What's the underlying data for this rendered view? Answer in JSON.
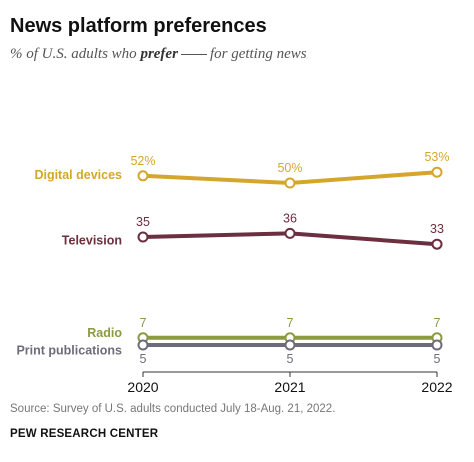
{
  "header": {
    "title": "News platform preferences",
    "subtitle_pre": "% of U.S. adults who ",
    "subtitle_bold": "prefer",
    "subtitle_post": "for getting news"
  },
  "footer": {
    "source": "Source: Survey of U.S. adults conducted July 18-Aug. 21, 2022.",
    "org": "PEW RESEARCH CENTER"
  },
  "chart_data": {
    "type": "line",
    "x": [
      "2020",
      "2021",
      "2022"
    ],
    "ylim": [
      0,
      60
    ],
    "grid": false,
    "series": [
      {
        "name": "Digital devices",
        "values": [
          52,
          50,
          53
        ],
        "labels": [
          "52%",
          "50%",
          "53%"
        ],
        "color": "#d4a72c"
      },
      {
        "name": "Television",
        "values": [
          35,
          36,
          33
        ],
        "labels": [
          "35",
          "36",
          "33"
        ],
        "color": "#6b2f3f"
      },
      {
        "name": "Radio",
        "values": [
          7,
          7,
          7
        ],
        "labels": [
          "7",
          "7",
          "7"
        ],
        "color": "#8c9a43"
      },
      {
        "name": "Print publications",
        "values": [
          5,
          5,
          5
        ],
        "labels": [
          "5",
          "5",
          "5"
        ],
        "color": "#6e6c7a"
      }
    ]
  }
}
